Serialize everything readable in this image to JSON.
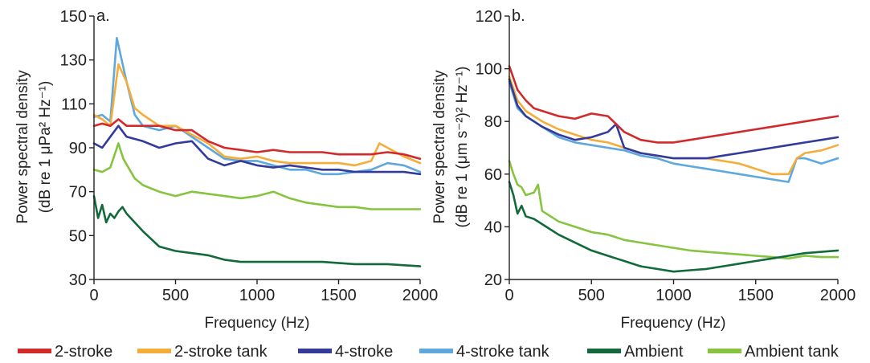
{
  "chart_data": [
    {
      "type": "line",
      "panel_label": "a.",
      "xlabel": "Frequency (Hz)",
      "ylabel_line1": "Power spectral density",
      "ylabel_line2": "(dB re 1 μPa² Hz⁻¹)",
      "xlim": [
        0,
        2000
      ],
      "ylim": [
        30,
        150
      ],
      "xticks": [
        0,
        500,
        1000,
        1500,
        2000
      ],
      "yticks": [
        30,
        50,
        70,
        90,
        110,
        130,
        150
      ],
      "grid": false,
      "series": [
        {
          "name": "2-stroke",
          "x": [
            0,
            50,
            100,
            150,
            200,
            300,
            400,
            500,
            600,
            700,
            800,
            900,
            1000,
            1100,
            1200,
            1300,
            1400,
            1500,
            1600,
            1700,
            1800,
            1900,
            2000
          ],
          "values": [
            100,
            101,
            100,
            103,
            100,
            100,
            100,
            98,
            98,
            93,
            90,
            89,
            88,
            89,
            88,
            88,
            88,
            87,
            87,
            87,
            88,
            87,
            85
          ]
        },
        {
          "name": "2-stroke tank",
          "x": [
            0,
            50,
            100,
            150,
            200,
            250,
            300,
            400,
            500,
            600,
            700,
            800,
            900,
            1000,
            1100,
            1200,
            1300,
            1400,
            1500,
            1600,
            1700,
            1750,
            1800,
            1900,
            2000
          ],
          "values": [
            105,
            103,
            100,
            128,
            120,
            108,
            105,
            100,
            100,
            96,
            92,
            86,
            85,
            86,
            84,
            83,
            83,
            83,
            83,
            82,
            84,
            92,
            90,
            86,
            83
          ]
        },
        {
          "name": "4-stroke",
          "x": [
            0,
            50,
            100,
            150,
            200,
            300,
            400,
            500,
            600,
            700,
            800,
            900,
            1000,
            1100,
            1200,
            1300,
            1400,
            1500,
            1600,
            1700,
            1800,
            1900,
            2000
          ],
          "values": [
            92,
            90,
            95,
            100,
            95,
            93,
            90,
            92,
            93,
            85,
            82,
            84,
            82,
            81,
            82,
            81,
            80,
            80,
            79,
            79,
            79,
            79,
            78
          ]
        },
        {
          "name": "4-stroke tank",
          "x": [
            0,
            50,
            100,
            140,
            200,
            250,
            300,
            400,
            500,
            600,
            700,
            800,
            900,
            1000,
            1100,
            1200,
            1300,
            1400,
            1500,
            1600,
            1700,
            1800,
            1900,
            2000
          ],
          "values": [
            104,
            105,
            102,
            140,
            120,
            105,
            100,
            98,
            100,
            95,
            90,
            85,
            84,
            84,
            82,
            80,
            80,
            78,
            78,
            79,
            80,
            83,
            82,
            79
          ]
        },
        {
          "name": "Ambient",
          "x": [
            0,
            25,
            50,
            75,
            100,
            125,
            150,
            175,
            200,
            300,
            400,
            500,
            600,
            700,
            800,
            900,
            1000,
            1200,
            1400,
            1600,
            1800,
            2000
          ],
          "values": [
            68,
            58,
            64,
            56,
            60,
            58,
            61,
            63,
            60,
            52,
            45,
            43,
            42,
            41,
            39,
            38,
            38,
            38,
            38,
            37,
            37,
            36
          ]
        },
        {
          "name": "Ambient tank",
          "x": [
            0,
            50,
            100,
            150,
            180,
            250,
            300,
            400,
            500,
            600,
            700,
            800,
            900,
            1000,
            1100,
            1200,
            1300,
            1400,
            1500,
            1600,
            1700,
            1800,
            1900,
            2000
          ],
          "values": [
            80,
            79,
            81,
            92,
            85,
            76,
            73,
            70,
            68,
            70,
            69,
            68,
            67,
            68,
            70,
            67,
            65,
            64,
            63,
            63,
            62,
            62,
            62,
            62
          ]
        }
      ]
    },
    {
      "type": "line",
      "panel_label": "b.",
      "xlabel": "Frequency (Hz)",
      "ylabel_line1": "Power spectral density",
      "ylabel_line2": "(dB re 1 (μm s⁻²)² Hz⁻¹)",
      "xlim": [
        0,
        2000
      ],
      "ylim": [
        20,
        120
      ],
      "xticks": [
        0,
        500,
        1000,
        1500,
        2000
      ],
      "yticks": [
        20,
        40,
        60,
        80,
        100,
        120
      ],
      "grid": false,
      "series": [
        {
          "name": "2-stroke",
          "x": [
            0,
            50,
            100,
            150,
            200,
            300,
            400,
            500,
            600,
            700,
            800,
            900,
            1000,
            1100,
            1200,
            1300,
            1400,
            1500,
            1600,
            1700,
            1800,
            1900,
            2000
          ],
          "values": [
            101,
            92,
            88,
            85,
            84,
            82,
            81,
            83,
            82,
            76,
            73,
            72,
            72,
            73,
            74,
            75,
            76,
            77,
            78,
            79,
            80,
            81,
            82
          ]
        },
        {
          "name": "2-stroke tank",
          "x": [
            0,
            50,
            100,
            150,
            200,
            300,
            400,
            500,
            600,
            700,
            800,
            900,
            1000,
            1100,
            1200,
            1300,
            1400,
            1500,
            1600,
            1700,
            1750,
            1800,
            1900,
            2000
          ],
          "values": [
            97,
            88,
            84,
            82,
            80,
            77,
            75,
            73,
            72,
            70,
            68,
            67,
            66,
            66,
            66,
            65,
            64,
            62,
            60,
            60,
            66,
            68,
            69,
            71
          ]
        },
        {
          "name": "4-stroke",
          "x": [
            0,
            50,
            100,
            150,
            200,
            300,
            400,
            500,
            600,
            650,
            700,
            800,
            900,
            1000,
            1100,
            1200,
            1300,
            1400,
            1500,
            1600,
            1700,
            1800,
            1900,
            2000
          ],
          "values": [
            96,
            86,
            82,
            80,
            78,
            75,
            73,
            74,
            76,
            79,
            70,
            68,
            67,
            66,
            66,
            66,
            67,
            68,
            69,
            70,
            71,
            72,
            73,
            74
          ]
        },
        {
          "name": "4-stroke tank",
          "x": [
            0,
            50,
            100,
            150,
            200,
            300,
            400,
            500,
            600,
            700,
            800,
            900,
            1000,
            1100,
            1200,
            1300,
            1400,
            1500,
            1600,
            1700,
            1750,
            1800,
            1900,
            2000
          ],
          "values": [
            95,
            85,
            82,
            80,
            78,
            74,
            72,
            71,
            70,
            69,
            67,
            66,
            64,
            63,
            62,
            61,
            60,
            59,
            58,
            57,
            66,
            66,
            64,
            66
          ]
        },
        {
          "name": "Ambient",
          "x": [
            0,
            25,
            50,
            75,
            100,
            150,
            200,
            300,
            400,
            500,
            600,
            700,
            800,
            900,
            1000,
            1100,
            1200,
            1300,
            1400,
            1500,
            1600,
            1700,
            1800,
            1900,
            2000
          ],
          "values": [
            57,
            52,
            45,
            48,
            44,
            43,
            41,
            37,
            34,
            31,
            29,
            27,
            25,
            24,
            23,
            23.5,
            24,
            25,
            26,
            27,
            28,
            29,
            30,
            30.5,
            31
          ]
        },
        {
          "name": "Ambient tank",
          "x": [
            0,
            25,
            50,
            75,
            100,
            150,
            175,
            200,
            300,
            400,
            500,
            600,
            700,
            800,
            900,
            1000,
            1100,
            1200,
            1300,
            1400,
            1500,
            1600,
            1700,
            1800,
            1900,
            2000
          ],
          "values": [
            65,
            60,
            56,
            55,
            52,
            53,
            56,
            46,
            42,
            40,
            38,
            37,
            35,
            34,
            33,
            32,
            31,
            30.5,
            30,
            29.5,
            29,
            28.5,
            28,
            29,
            28.5,
            28.5
          ]
        }
      ]
    }
  ],
  "legend": [
    {
      "name": "2-stroke",
      "color": "#d22a2a"
    },
    {
      "name": "2-stroke tank",
      "color": "#f5ad3a"
    },
    {
      "name": "4-stroke",
      "color": "#323b9c"
    },
    {
      "name": "4-stroke tank",
      "color": "#5ea8de"
    },
    {
      "name": "Ambient",
      "color": "#12693a"
    },
    {
      "name": "Ambient tank",
      "color": "#86c440"
    }
  ],
  "colors": {
    "2-stroke": "#d22a2a",
    "2-stroke tank": "#f5ad3a",
    "4-stroke": "#323b9c",
    "4-stroke tank": "#5ea8de",
    "Ambient": "#12693a",
    "Ambient tank": "#86c440"
  }
}
